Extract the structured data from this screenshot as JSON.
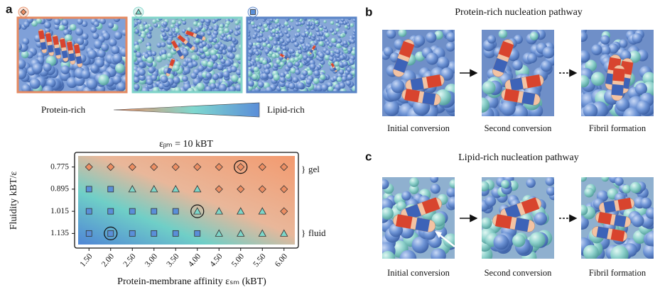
{
  "panel_labels": [
    "a",
    "b",
    "c"
  ],
  "gradient_labels": [
    "Protein-rich",
    "Lipid-rich"
  ],
  "chart_data": {
    "type": "scatter",
    "title": "εᵦₘ = 10 kBT",
    "xlabel": "Protein-membrane affinity εₛₘ (kBT)",
    "ylabel": "Fluidity kBT/ε",
    "xlim": [
      1.25,
      6.25
    ],
    "ylim": [
      1.195,
      0.715
    ],
    "inverted_y": true,
    "xticks": [
      {
        "value": 1.5,
        "label": "1.50"
      },
      {
        "value": 2,
        "label": "2.00"
      },
      {
        "value": 2.5,
        "label": "2.50"
      },
      {
        "value": 3,
        "label": "3.00"
      },
      {
        "value": 3.5,
        "label": "3.50"
      },
      {
        "value": 4,
        "label": "4.00"
      },
      {
        "value": 4.5,
        "label": "4.50"
      },
      {
        "value": 5,
        "label": "5.00"
      },
      {
        "value": 5.5,
        "label": "5.50"
      },
      {
        "value": 6,
        "label": "6.00"
      }
    ],
    "yticks": [
      0.775,
      0.895,
      1.015,
      1.135
    ],
    "series": [
      {
        "marker": "diamond",
        "color": "#ec8e63",
        "x": [
          1.5,
          2,
          2.5,
          3,
          3.5,
          4,
          4.5,
          5,
          5.5,
          6,
          4.5,
          5,
          5.5,
          6,
          6
        ],
        "y": [
          0.775,
          0.775,
          0.775,
          0.775,
          0.775,
          0.775,
          0.775,
          0.775,
          0.775,
          0.775,
          0.895,
          0.895,
          0.895,
          0.895,
          1.015
        ]
      },
      {
        "marker": "triangle",
        "color": "#7dd6c9",
        "x": [
          2.5,
          3,
          3.5,
          4,
          4,
          4.5,
          5,
          5.5,
          4.5,
          5,
          5.5,
          6
        ],
        "y": [
          0.895,
          0.895,
          0.895,
          0.895,
          1.015,
          1.015,
          1.015,
          1.015,
          1.135,
          1.135,
          1.135,
          1.135
        ]
      },
      {
        "marker": "square",
        "color": "#5a8fd9",
        "x": [
          1.5,
          2,
          1.5,
          2,
          2.5,
          3,
          3.5,
          1.5,
          2,
          2.5,
          3,
          3.5,
          4
        ],
        "y": [
          0.895,
          0.895,
          1.015,
          1.015,
          1.015,
          1.015,
          1.015,
          1.135,
          1.135,
          1.135,
          1.135,
          1.135,
          1.135
        ]
      }
    ],
    "highlight": {
      "x": [
        5,
        4,
        2
      ],
      "y": [
        0.775,
        1.015,
        1.135
      ]
    },
    "annotations": [
      "gel",
      "fluid"
    ]
  },
  "pathways": [
    {
      "title": "Protein-rich nucleation pathway",
      "steps": [
        "Initial conversion",
        "Second conversion",
        "Fibril formation"
      ]
    },
    {
      "title": "Lipid-rich nucleation pathway",
      "steps": [
        "Initial conversion",
        "Second conversion",
        "Fibril formation"
      ]
    }
  ]
}
